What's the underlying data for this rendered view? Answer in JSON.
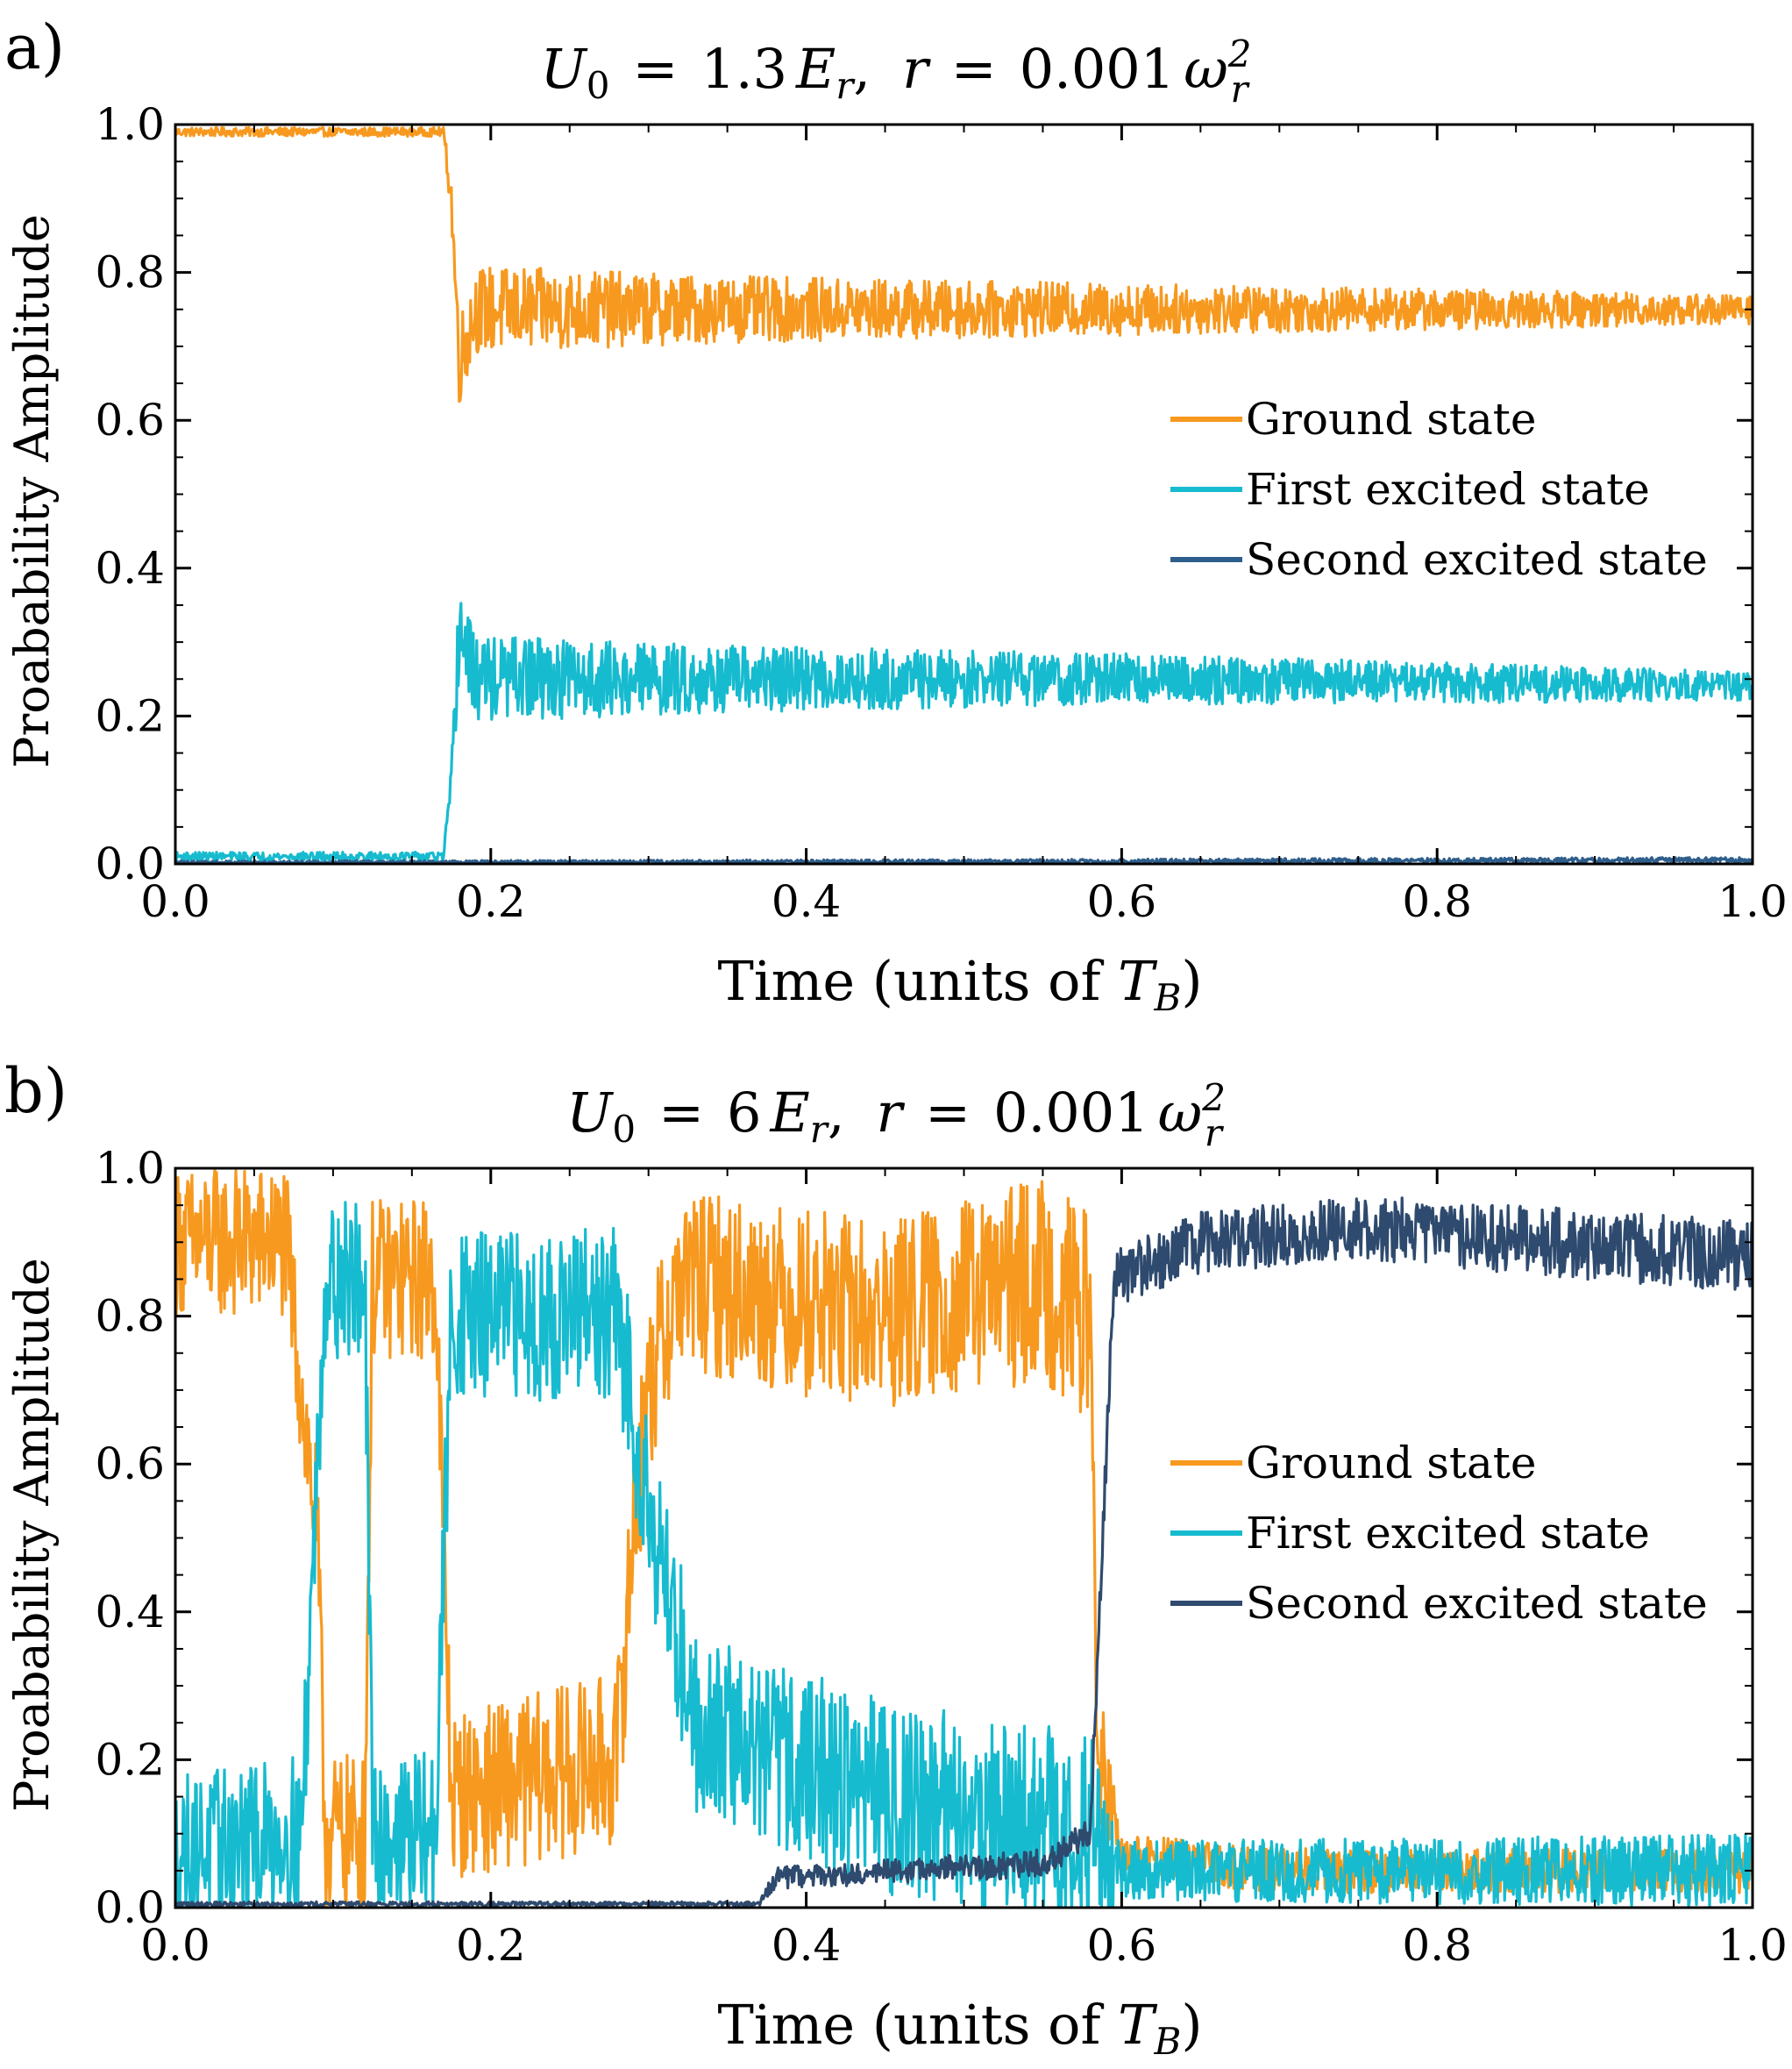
{
  "chart_data": [
    {
      "type": "line",
      "panel_label": "a)",
      "title": {
        "u": "U",
        "u_sub": "0",
        "eq1": "=",
        "u0_value": "1.3",
        "e": "E",
        "e_sub": "r",
        "comma": ",",
        "r": "r",
        "eq2": "=",
        "r_value": "0.001",
        "omega": "ω",
        "omega_sub": "r",
        "omega_sup": "2"
      },
      "xlabel": {
        "text": "Time (units of ",
        "t": "T",
        "t_sub": "B",
        "close": ")"
      },
      "ylabel": "Proabability Amplitude",
      "xlim": [
        0,
        1
      ],
      "ylim": [
        0,
        1
      ],
      "xticks": [
        "0.0",
        "0.2",
        "0.4",
        "0.6",
        "0.8",
        "1.0"
      ],
      "yticks": [
        "0.0",
        "0.2",
        "0.4",
        "0.6",
        "0.8",
        "1.0"
      ],
      "legend_position": "center-right",
      "series": [
        {
          "name": "Ground state",
          "color": "#F7991F",
          "keyframes": [
            [
              0,
              0.99
            ],
            [
              0.17,
              0.99
            ],
            [
              0.175,
              0.9
            ],
            [
              0.18,
              0.68
            ],
            [
              0.19,
              0.75
            ],
            [
              0.35,
              0.75
            ],
            [
              0.6,
              0.75
            ],
            [
              1.0,
              0.75
            ]
          ],
          "noise": [
            [
              0,
              0.006
            ],
            [
              0.17,
              0.006
            ],
            [
              0.18,
              0.06
            ],
            [
              0.35,
              0.045
            ],
            [
              0.6,
              0.035
            ],
            [
              1.0,
              0.02
            ]
          ]
        },
        {
          "name": "First excited state",
          "color": "#17BBCF",
          "keyframes": [
            [
              0,
              0.01
            ],
            [
              0.17,
              0.01
            ],
            [
              0.175,
              0.1
            ],
            [
              0.18,
              0.32
            ],
            [
              0.19,
              0.25
            ],
            [
              0.35,
              0.25
            ],
            [
              0.6,
              0.25
            ],
            [
              1.0,
              0.24
            ]
          ],
          "noise": [
            [
              0,
              0.006
            ],
            [
              0.17,
              0.006
            ],
            [
              0.18,
              0.06
            ],
            [
              0.35,
              0.045
            ],
            [
              0.6,
              0.035
            ],
            [
              1.0,
              0.02
            ]
          ]
        },
        {
          "name": "Second excited state",
          "color": "#2E5E8C",
          "keyframes": [
            [
              0,
              0.002
            ],
            [
              0.5,
              0.003
            ],
            [
              1.0,
              0.005
            ]
          ],
          "noise": [
            [
              0,
              0.002
            ],
            [
              1.0,
              0.004
            ]
          ]
        }
      ]
    },
    {
      "type": "line",
      "panel_label": "b)",
      "title": {
        "u": "U",
        "u_sub": "0",
        "eq1": "=",
        "u0_value": "6",
        "e": "E",
        "e_sub": "r",
        "comma": ",",
        "r": "r",
        "eq2": "=",
        "r_value": "0.001",
        "omega": "ω",
        "omega_sub": "r",
        "omega_sup": "2"
      },
      "xlabel": {
        "text": "Time (units of ",
        "t": "T",
        "t_sub": "B",
        "close": ")"
      },
      "ylabel": "Proabability Amplitude",
      "xlim": [
        0,
        1
      ],
      "ylim": [
        0,
        1
      ],
      "xticks": [
        "0.0",
        "0.2",
        "0.4",
        "0.6",
        "0.8",
        "1.0"
      ],
      "yticks": [
        "0.0",
        "0.2",
        "0.4",
        "0.6",
        "0.8",
        "1.0"
      ],
      "legend_position": "center-right",
      "series": [
        {
          "name": "Ground state",
          "color": "#F7991F",
          "keyframes": [
            [
              0,
              0.9
            ],
            [
              0.07,
              0.9
            ],
            [
              0.09,
              0.5
            ],
            [
              0.095,
              0.1
            ],
            [
              0.12,
              0.1
            ],
            [
              0.125,
              0.85
            ],
            [
              0.165,
              0.85
            ],
            [
              0.175,
              0.15
            ],
            [
              0.28,
              0.2
            ],
            [
              0.29,
              0.5
            ],
            [
              0.3,
              0.7
            ],
            [
              0.32,
              0.85
            ],
            [
              0.45,
              0.8
            ],
            [
              0.55,
              0.85
            ],
            [
              0.58,
              0.8
            ],
            [
              0.585,
              0.2
            ],
            [
              0.6,
              0.07
            ],
            [
              0.7,
              0.05
            ],
            [
              1.0,
              0.05
            ]
          ],
          "noise": [
            [
              0,
              0.1
            ],
            [
              0.58,
              0.14
            ],
            [
              0.6,
              0.03
            ],
            [
              1.0,
              0.03
            ]
          ]
        },
        {
          "name": "First excited state",
          "color": "#17BBCF",
          "keyframes": [
            [
              0,
              0.08
            ],
            [
              0.08,
              0.1
            ],
            [
              0.095,
              0.85
            ],
            [
              0.12,
              0.85
            ],
            [
              0.125,
              0.1
            ],
            [
              0.165,
              0.1
            ],
            [
              0.175,
              0.8
            ],
            [
              0.28,
              0.8
            ],
            [
              0.3,
              0.55
            ],
            [
              0.33,
              0.25
            ],
            [
              0.45,
              0.15
            ],
            [
              0.58,
              0.1
            ],
            [
              0.59,
              0.05
            ],
            [
              1.0,
              0.05
            ]
          ],
          "noise": [
            [
              0,
              0.1
            ],
            [
              0.58,
              0.14
            ],
            [
              0.6,
              0.04
            ],
            [
              1.0,
              0.05
            ]
          ]
        },
        {
          "name": "Second excited state",
          "color": "#2E4A6E",
          "keyframes": [
            [
              0,
              0.005
            ],
            [
              0.37,
              0.005
            ],
            [
              0.38,
              0.04
            ],
            [
              0.55,
              0.06
            ],
            [
              0.58,
              0.1
            ],
            [
              0.595,
              0.85
            ],
            [
              0.65,
              0.9
            ],
            [
              0.75,
              0.92
            ],
            [
              1.0,
              0.88
            ]
          ],
          "noise": [
            [
              0,
              0.003
            ],
            [
              0.37,
              0.003
            ],
            [
              0.38,
              0.015
            ],
            [
              0.58,
              0.02
            ],
            [
              0.6,
              0.04
            ],
            [
              1.0,
              0.05
            ]
          ]
        }
      ]
    }
  ]
}
